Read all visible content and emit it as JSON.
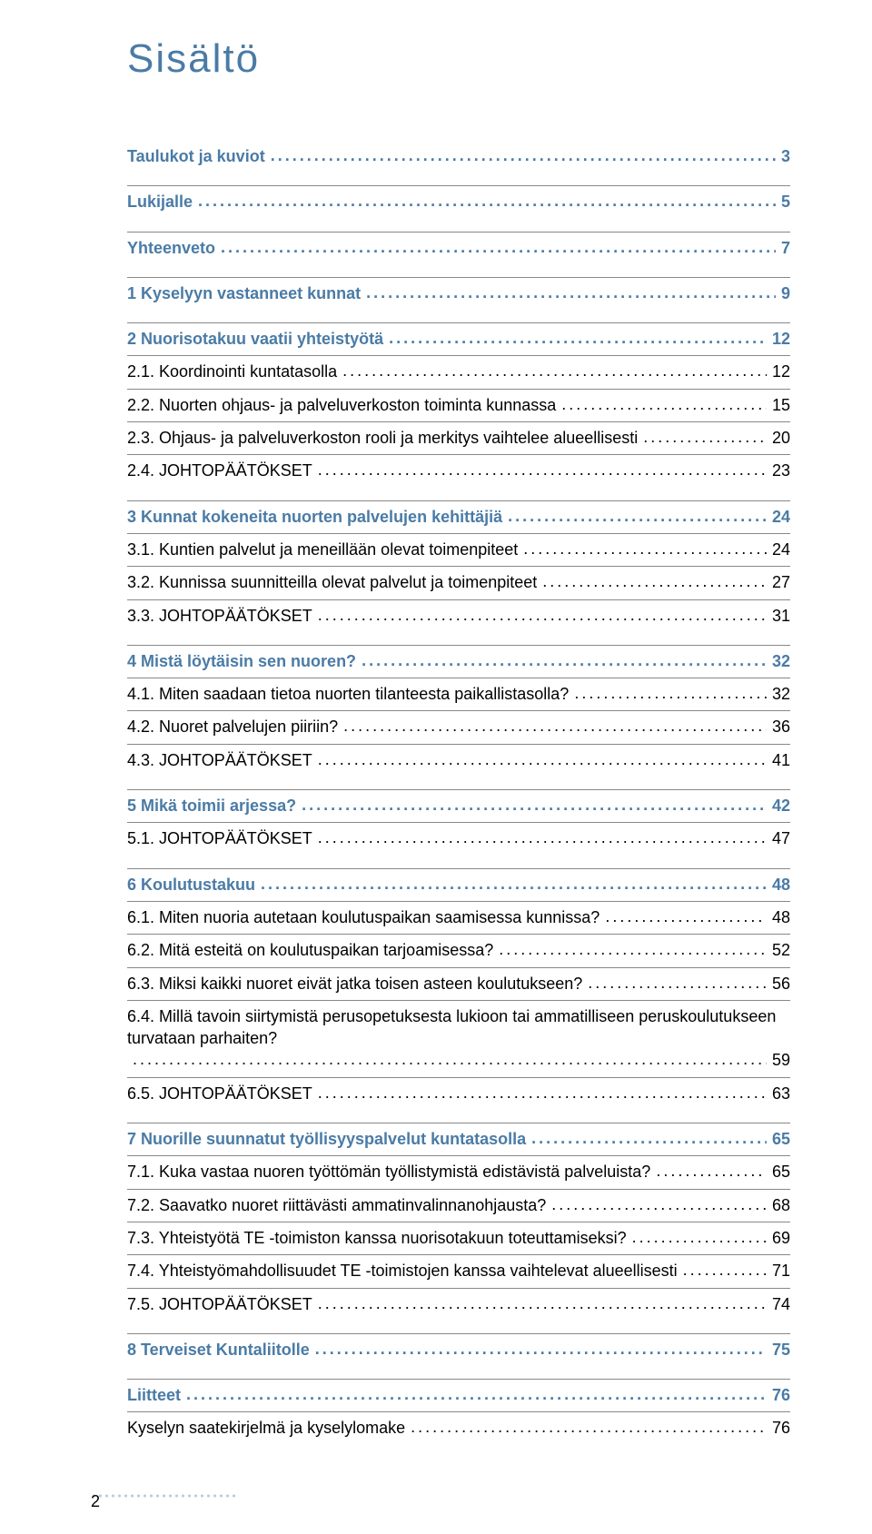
{
  "title": "Sisältö",
  "pageNumber": "2",
  "colors": {
    "accent": "#4a7ba6",
    "text": "#000000",
    "dottedRule": "#b8cde0",
    "border": "#888888",
    "background": "#ffffff"
  },
  "typography": {
    "title_fontsize": 44,
    "entry_fontsize": 18,
    "font_family": "Arial"
  },
  "toc": [
    {
      "level": 0,
      "label": "Taulukot ja kuviot",
      "page": "3",
      "borderTop": false,
      "sectionGap": false
    },
    {
      "level": 0,
      "label": "Lukijalle",
      "page": "5",
      "borderTop": true,
      "sectionGap": true
    },
    {
      "level": 0,
      "label": "Yhteenveto",
      "page": "7",
      "borderTop": true,
      "sectionGap": true
    },
    {
      "level": 0,
      "label": "1 Kyselyyn vastanneet kunnat",
      "page": "9",
      "borderTop": true,
      "sectionGap": true
    },
    {
      "level": 0,
      "label": "2 Nuorisotakuu vaatii yhteistyötä",
      "page": "12",
      "borderTop": true,
      "sectionGap": true
    },
    {
      "level": 1,
      "label": "2.1. Koordinointi kuntatasolla",
      "page": "12",
      "borderTop": true,
      "sectionGap": false
    },
    {
      "level": 1,
      "label": "2.2. Nuorten ohjaus- ja palveluverkoston toiminta kunnassa",
      "page": "15",
      "borderTop": true,
      "sectionGap": false
    },
    {
      "level": 1,
      "label": "2.3. Ohjaus- ja palveluverkoston rooli ja merkitys vaihtelee alueellisesti",
      "page": "20",
      "borderTop": true,
      "sectionGap": false
    },
    {
      "level": 1,
      "label": "2.4. JOHTOPÄÄTÖKSET",
      "page": "23",
      "borderTop": true,
      "sectionGap": false
    },
    {
      "level": 0,
      "label": "3 Kunnat kokeneita nuorten palvelujen kehittäjiä",
      "page": "24",
      "borderTop": true,
      "sectionGap": true
    },
    {
      "level": 1,
      "label": "3.1. Kuntien palvelut ja meneillään olevat toimenpiteet",
      "page": "24",
      "borderTop": true,
      "sectionGap": false
    },
    {
      "level": 1,
      "label": "3.2. Kunnissa suunnitteilla olevat palvelut ja toimenpiteet",
      "page": "27",
      "borderTop": true,
      "sectionGap": false
    },
    {
      "level": 1,
      "label": "3.3. JOHTOPÄÄTÖKSET",
      "page": "31",
      "borderTop": true,
      "sectionGap": false
    },
    {
      "level": 0,
      "label": "4 Mistä löytäisin sen nuoren?",
      "page": "32",
      "borderTop": true,
      "sectionGap": true
    },
    {
      "level": 1,
      "label": "4.1. Miten saadaan tietoa nuorten tilanteesta paikallistasolla?",
      "page": "32",
      "borderTop": true,
      "sectionGap": false
    },
    {
      "level": 1,
      "label": "4.2. Nuoret palvelujen piiriin?",
      "page": "36",
      "borderTop": true,
      "sectionGap": false
    },
    {
      "level": 1,
      "label": "4.3. JOHTOPÄÄTÖKSET",
      "page": "41",
      "borderTop": true,
      "sectionGap": false
    },
    {
      "level": 0,
      "label": "5 Mikä toimii arjessa?",
      "page": "42",
      "borderTop": true,
      "sectionGap": true
    },
    {
      "level": 1,
      "label": "5.1. JOHTOPÄÄTÖKSET",
      "page": "47",
      "borderTop": true,
      "sectionGap": false
    },
    {
      "level": 0,
      "label": "6 Koulutustakuu",
      "page": "48",
      "borderTop": true,
      "sectionGap": true
    },
    {
      "level": 1,
      "label": "6.1. Miten nuoria autetaan koulutuspaikan saamisessa kunnissa?",
      "page": "48",
      "borderTop": true,
      "sectionGap": false
    },
    {
      "level": 1,
      "label": "6.2. Mitä esteitä on koulutuspaikan tarjoamisessa?",
      "page": "52",
      "borderTop": true,
      "sectionGap": false
    },
    {
      "level": 1,
      "label": "6.3. Miksi kaikki nuoret eivät jatka toisen asteen koulutukseen?",
      "page": "56",
      "borderTop": true,
      "sectionGap": false
    },
    {
      "level": 1,
      "label": "6.4. Millä tavoin siirtymistä perusopetuksesta lukioon tai ammatilliseen peruskoulutukseen turvataan parhaiten?",
      "page": "59",
      "borderTop": true,
      "sectionGap": false,
      "wrap": true
    },
    {
      "level": 1,
      "label": "6.5. JOHTOPÄÄTÖKSET",
      "page": "63",
      "borderTop": true,
      "sectionGap": false
    },
    {
      "level": 0,
      "label": "7 Nuorille suunnatut työllisyyspalvelut kuntatasolla",
      "page": "65",
      "borderTop": true,
      "sectionGap": true
    },
    {
      "level": 1,
      "label": "7.1. Kuka vastaa nuoren työttömän työllistymistä edistävistä palveluista?",
      "page": "65",
      "borderTop": true,
      "sectionGap": false
    },
    {
      "level": 1,
      "label": "7.2. Saavatko nuoret riittävästi ammatinvalinnanohjausta?",
      "page": "68",
      "borderTop": true,
      "sectionGap": false
    },
    {
      "level": 1,
      "label": "7.3. Yhteistyötä TE -toimiston kanssa nuorisotakuun toteuttamiseksi?",
      "page": "69",
      "borderTop": true,
      "sectionGap": false
    },
    {
      "level": 1,
      "label": "7.4. Yhteistyömahdollisuudet TE -toimistojen kanssa vaihtelevat alueellisesti",
      "page": "71",
      "borderTop": true,
      "sectionGap": false
    },
    {
      "level": 1,
      "label": "7.5. JOHTOPÄÄTÖKSET",
      "page": "74",
      "borderTop": true,
      "sectionGap": false
    },
    {
      "level": 0,
      "label": "8 Terveiset Kuntaliitolle",
      "page": "75",
      "borderTop": true,
      "sectionGap": true
    },
    {
      "level": 0,
      "label": "Liitteet",
      "page": "76",
      "borderTop": true,
      "sectionGap": true
    },
    {
      "level": 1,
      "label": "Kyselyn saatekirjelmä ja kyselylomake",
      "page": "76",
      "borderTop": true,
      "sectionGap": false
    }
  ]
}
